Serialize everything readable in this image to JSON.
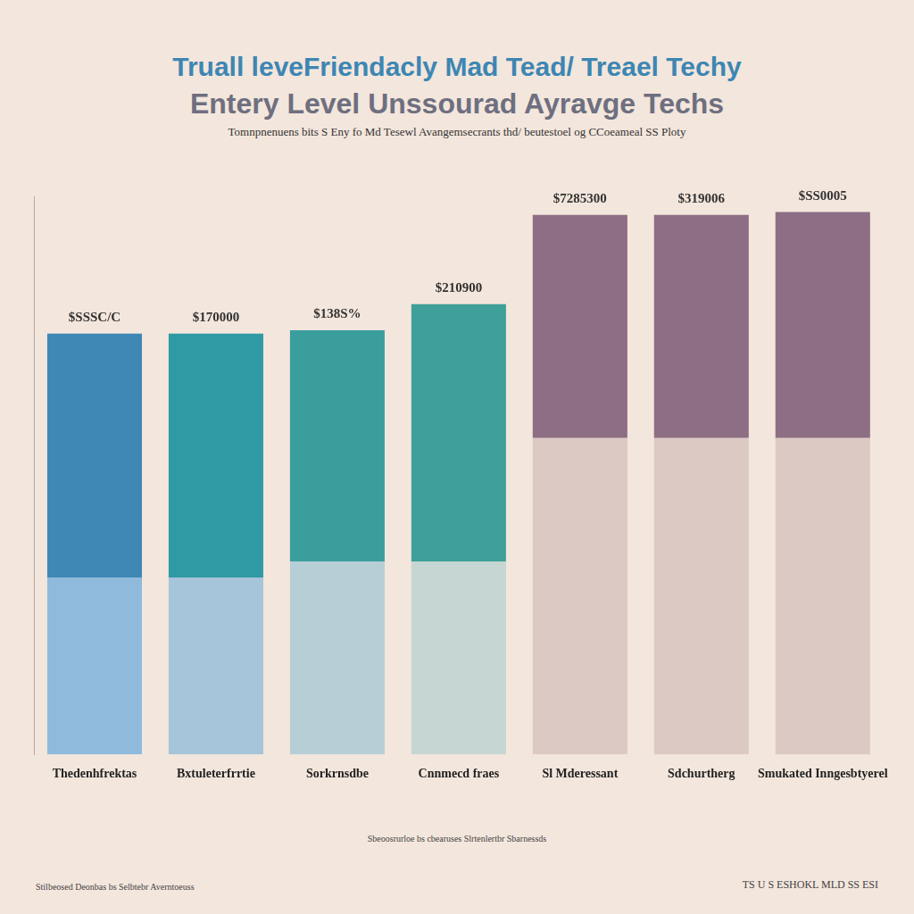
{
  "chart_data": {
    "type": "bar",
    "title": [
      "Truall leveFriendacly Mad Tead/ Treael Techy",
      "Entery Level Unssourad Ayravge Techs"
    ],
    "subtitle": "Tomnpnenuens bits S Eny fo Md Tesewl Avangemsecrants thd/ beutestoel og CCoeameal SS Ploty",
    "categories": [
      "Thedenhfrektas",
      "Bxtuleterfrrtie",
      "Sorkrnsdbe",
      "Cnnmecd fraes",
      "Sl Mderessant",
      "Sdchurtherg",
      "Smukated Inngesbtyerel"
    ],
    "series": [
      {
        "colors": [
          "#8fbadc",
          "#a6c5da",
          "#b7ced6",
          "#c6d6d3",
          "#dcc9c4",
          "#dcc9c4",
          "#dcc9c4"
        ],
        "values": [
          31.7,
          31.7,
          34.6,
          34.6,
          56.7,
          56.7,
          56.7
        ]
      },
      {
        "colors": [
          "#3f88b5",
          "#2f9aa3",
          "#3a9e9d",
          "#3ea098",
          "#8e6e84",
          "#8e6e84",
          "#8e6e84"
        ],
        "values": [
          43.7,
          43.7,
          41.4,
          46.1,
          40.0,
          40.0,
          40.5
        ]
      }
    ],
    "annotations": [
      "$SSSC/C",
      "$170000",
      "$138S%",
      "$210900",
      "$7285300",
      "$319006",
      "$SS0005"
    ],
    "footnotes": [
      "Sbeoosrurloe bs cbearuses Slrtenlertbr Sbarnessds",
      "Stilbeosed Deonbas bs Selbtebr Averntoeuss",
      "TS U S ESHOKL MLD SS ESI"
    ],
    "ylim": [
      0,
      100
    ],
    "stacked": true,
    "grid": false,
    "tick_labels": "x"
  }
}
